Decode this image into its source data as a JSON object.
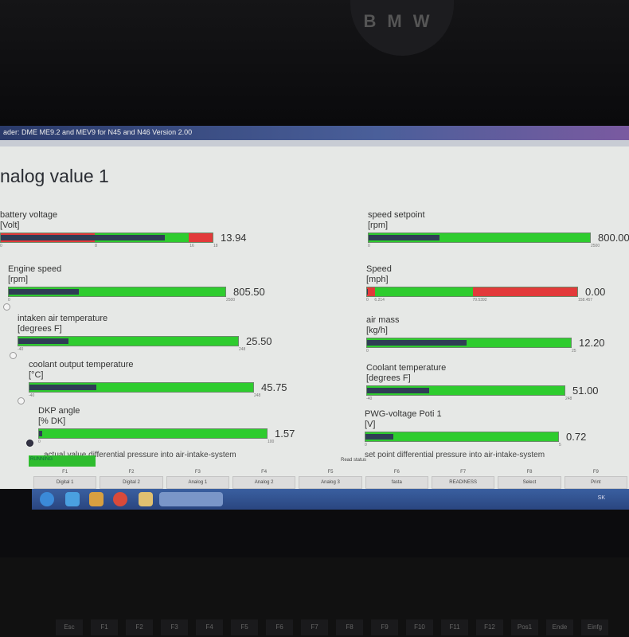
{
  "window_title": "ader: DME ME9.2 and MEV9 for N45 and N46 Version 2.00",
  "heading": "nalog value 1",
  "colors": {
    "ok": "#2ecc2e",
    "warn": "#e23a3a",
    "value_bar": "#2f3d55"
  },
  "gauges_left": [
    {
      "label": "battery voltage",
      "unit": "[Volt]",
      "value": "13.94",
      "min": 0,
      "max": 18,
      "fraction": 0.774,
      "ticks": [
        "0",
        "8",
        "16",
        "18"
      ],
      "tick_values": [
        0,
        8,
        16,
        18
      ],
      "zones": [
        {
          "from": 0,
          "to": 8,
          "color": "#e23a3a"
        },
        {
          "from": 8,
          "to": 16,
          "color": "#2ecc2e"
        },
        {
          "from": 16,
          "to": 18,
          "color": "#e23a3a"
        }
      ]
    },
    {
      "label": "Engine speed",
      "unit": "[rpm]",
      "value": "805.50",
      "min": 0,
      "max": 2500,
      "fraction": 0.322,
      "ticks": [
        "0",
        "2500"
      ],
      "tick_values": [
        0,
        2500
      ]
    },
    {
      "label": "intaken air temperature",
      "unit": "[degrees F]",
      "value": "25.50",
      "min": -40,
      "max": 248,
      "fraction": 0.227,
      "ticks": [
        "-40",
        "248"
      ],
      "tick_values": [
        -40,
        248
      ]
    },
    {
      "label": "coolant output temperature",
      "unit": "[°C]",
      "value": "45.75",
      "min": -40,
      "max": 248,
      "fraction": 0.298,
      "ticks": [
        "-40",
        "248"
      ],
      "tick_values": [
        -40,
        248
      ]
    },
    {
      "label": "DKP angle",
      "unit": "[% DK]",
      "value": "1.57",
      "min": 0,
      "max": 100,
      "fraction": 0.0157,
      "ticks": [
        "0",
        "100"
      ],
      "tick_values": [
        0,
        100
      ]
    }
  ],
  "gauges_right": [
    {
      "label": "speed setpoint",
      "unit": "[rpm]",
      "value": "800.00",
      "min": 0,
      "max": 2500,
      "fraction": 0.32,
      "ticks": [
        "0",
        "2500"
      ],
      "tick_values": [
        0,
        2500
      ]
    },
    {
      "label": "Speed",
      "unit": "[mph]",
      "value": "0.00",
      "min": 0,
      "max": 158.457,
      "fraction": 0,
      "ticks": [
        "0",
        "6.214",
        "79.5392",
        "158.457"
      ],
      "tick_values": [
        0,
        6.214,
        79.5392,
        158.457
      ],
      "zones": [
        {
          "from": 0,
          "to": 6.214,
          "color": "#e23a3a"
        },
        {
          "from": 6.214,
          "to": 79.5392,
          "color": "#2ecc2e"
        },
        {
          "from": 79.5392,
          "to": 158.457,
          "color": "#e23a3a"
        }
      ]
    },
    {
      "label": "air mass",
      "unit": "[kg/h]",
      "value": "12.20",
      "min": 0,
      "max": 25,
      "fraction": 0.488,
      "ticks": [
        "0",
        "25"
      ],
      "tick_values": [
        0,
        25
      ]
    },
    {
      "label": "Coolant temperature",
      "unit": "[degrees F]",
      "value": "51.00",
      "min": -40,
      "max": 248,
      "fraction": 0.316,
      "ticks": [
        "-40",
        "248"
      ],
      "tick_values": [
        -40,
        248
      ]
    },
    {
      "label": "PWG-voltage Poti 1",
      "unit": "[V]",
      "value": "0.72",
      "min": 0,
      "max": 5,
      "fraction": 0.144,
      "ticks": [
        "0",
        "5"
      ],
      "tick_values": [
        0,
        5
      ]
    }
  ],
  "cut_left": "actual value differential pressure into air-intake-system",
  "cut_right": "set point differential pressure into air-intake-system",
  "status": "RUNNING",
  "read_status": "Read status",
  "fkeys": [
    {
      "key": "F1",
      "label": "Digital 1"
    },
    {
      "key": "F2",
      "label": "Digital 2"
    },
    {
      "key": "F3",
      "label": "Analog 1"
    },
    {
      "key": "F4",
      "label": "Analog 2"
    },
    {
      "key": "F5",
      "label": "Analog 3"
    },
    {
      "key": "F6",
      "label": "fasta"
    },
    {
      "key": "F7",
      "label": "READINESS"
    },
    {
      "key": "F8",
      "label": "Select"
    },
    {
      "key": "F9",
      "label": "Print"
    }
  ],
  "taskbar": {
    "lang": "SK",
    "icons": [
      "start-orb-icon",
      "internet-explorer-icon",
      "media-player-icon",
      "chrome-icon",
      "folder-icon",
      "bmw-app-icon"
    ]
  },
  "keyboard": [
    "Esc",
    "F1",
    "F2",
    "F3",
    "F4",
    "F5",
    "F6",
    "F7",
    "F8",
    "F9",
    "F10",
    "F11",
    "F12",
    "Pos1",
    "Ende",
    "Einfg"
  ],
  "logo_text": "BMW"
}
